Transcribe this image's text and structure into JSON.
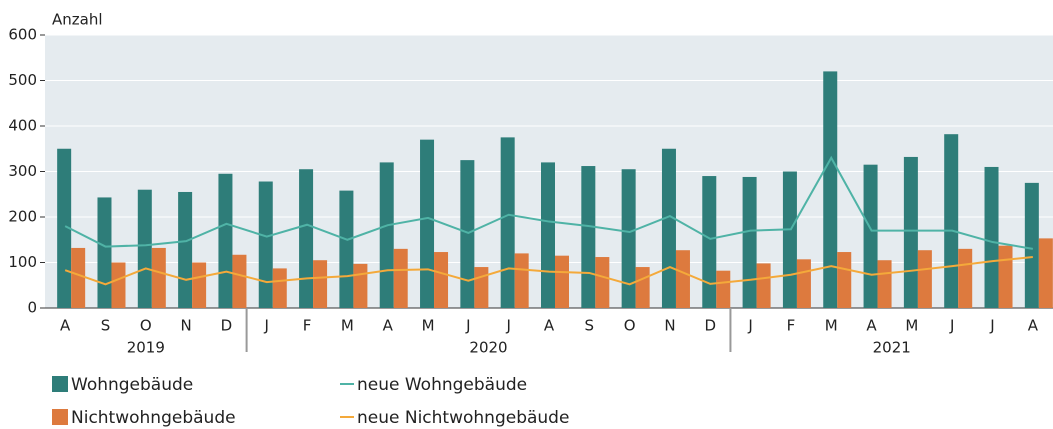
{
  "chart_data": {
    "type": "bar_line",
    "y_axis_label": "Anzahl",
    "categories": [
      "A",
      "S",
      "O",
      "N",
      "D",
      "J",
      "F",
      "M",
      "A",
      "M",
      "J",
      "J",
      "A",
      "S",
      "O",
      "N",
      "D",
      "J",
      "F",
      "M",
      "A",
      "M",
      "J",
      "J",
      "A"
    ],
    "year_groups": [
      {
        "label": "2019",
        "months": 5
      },
      {
        "label": "2020",
        "months": 12
      },
      {
        "label": "2021",
        "months": 8
      }
    ],
    "ylim": [
      0,
      600
    ],
    "yticks": [
      0,
      100,
      200,
      300,
      400,
      500,
      600
    ],
    "series": [
      {
        "name": "Wohngebäude",
        "kind": "bar",
        "color": "#2e7d79",
        "values": [
          350,
          243,
          260,
          255,
          295,
          278,
          305,
          258,
          320,
          370,
          325,
          375,
          320,
          312,
          305,
          350,
          290,
          288,
          300,
          520,
          315,
          332,
          382,
          310,
          275
        ]
      },
      {
        "name": "Nichtwohngebäude",
        "kind": "bar",
        "color": "#dd7a3e",
        "values": [
          132,
          100,
          132,
          100,
          117,
          87,
          105,
          97,
          130,
          123,
          90,
          120,
          115,
          112,
          90,
          127,
          82,
          98,
          107,
          123,
          105,
          127,
          130,
          137,
          153
        ]
      },
      {
        "name": "neue Wohngebäude",
        "kind": "line",
        "color": "#4fb3a6",
        "values": [
          180,
          135,
          138,
          147,
          185,
          157,
          183,
          150,
          182,
          198,
          165,
          205,
          190,
          180,
          167,
          202,
          152,
          170,
          173,
          330,
          170,
          170,
          170,
          145,
          130
        ]
      },
      {
        "name": "neue Nichtwohngebäude",
        "kind": "line",
        "color": "#f4a93a",
        "values": [
          83,
          52,
          87,
          62,
          80,
          57,
          65,
          70,
          83,
          85,
          60,
          87,
          80,
          77,
          52,
          90,
          53,
          62,
          73,
          92,
          73,
          82,
          92,
          103,
          112
        ]
      }
    ]
  }
}
